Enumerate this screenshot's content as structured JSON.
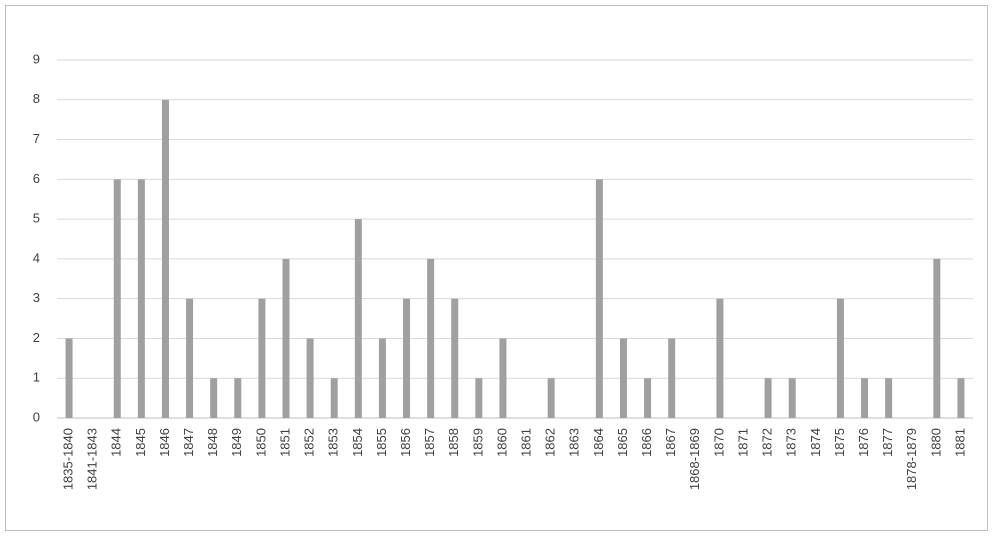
{
  "chart_data": {
    "type": "bar",
    "categories": [
      "1835-1840",
      "1841-1843",
      "1844",
      "1845",
      "1846",
      "1847",
      "1848",
      "1849",
      "1850",
      "1851",
      "1852",
      "1853",
      "1854",
      "1855",
      "1856",
      "1857",
      "1858",
      "1859",
      "1860",
      "1861",
      "1862",
      "1863",
      "1864",
      "1865",
      "1866",
      "1867",
      "1868-1869",
      "1870",
      "1871",
      "1872",
      "1873",
      "1874",
      "1875",
      "1876",
      "1877",
      "1878-1879",
      "1880",
      "1881"
    ],
    "values": [
      2,
      0,
      6,
      6,
      8,
      3,
      1,
      1,
      3,
      4,
      2,
      1,
      5,
      2,
      3,
      4,
      3,
      1,
      2,
      0,
      1,
      0,
      6,
      2,
      1,
      2,
      0,
      3,
      0,
      1,
      1,
      0,
      3,
      1,
      1,
      0,
      4,
      1
    ],
    "color": "#a0a0a0",
    "ylim": [
      0,
      9
    ],
    "yticks": [
      0,
      1,
      2,
      3,
      4,
      5,
      6,
      7,
      8,
      9
    ],
    "grid": true
  }
}
